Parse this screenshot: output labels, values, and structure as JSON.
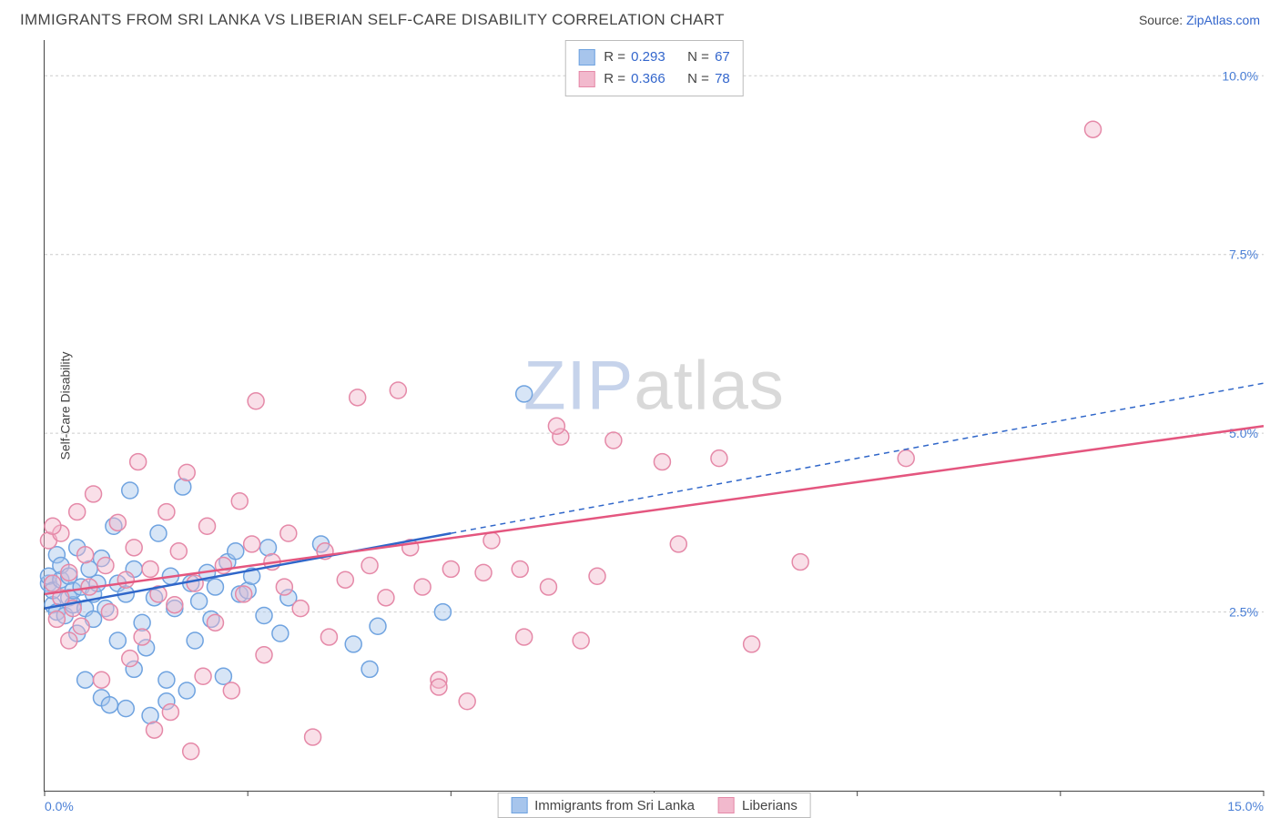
{
  "header": {
    "title": "IMMIGRANTS FROM SRI LANKA VS LIBERIAN SELF-CARE DISABILITY CORRELATION CHART",
    "source_prefix": "Source: ",
    "source_link": "ZipAtlas.com"
  },
  "chart": {
    "type": "scatter",
    "ylabel": "Self-Care Disability",
    "watermark_a": "ZIP",
    "watermark_b": "atlas",
    "background_color": "#ffffff",
    "grid_color": "#cccccc",
    "axis_color": "#444444",
    "tick_label_color": "#4a7fd6",
    "xlim": [
      0,
      15
    ],
    "ylim": [
      0,
      10.5
    ],
    "x_ticks": [
      0,
      2.5,
      5,
      7.5,
      10,
      12.5,
      15
    ],
    "x_tick_labels": [
      "0.0%",
      "",
      "",
      "",
      "",
      "",
      "15.0%"
    ],
    "y_ticks": [
      2.5,
      5.0,
      7.5,
      10.0
    ],
    "y_tick_labels": [
      "2.5%",
      "5.0%",
      "7.5%",
      "10.0%"
    ],
    "marker_radius": 9,
    "marker_fill_opacity": 0.45,
    "series": [
      {
        "id": "sri_lanka",
        "label": "Immigrants from Sri Lanka",
        "color_stroke": "#6fa3e0",
        "color_fill": "#a7c5ec",
        "trend_color": "#2f66c9",
        "r": "0.293",
        "n": "67",
        "trend": {
          "x1": 0,
          "y1": 2.55,
          "x2_solid": 5.0,
          "y2_solid": 3.6,
          "x2_dash": 15.0,
          "y2_dash": 5.7
        },
        "points": [
          [
            0.05,
            2.9
          ],
          [
            0.05,
            3.0
          ],
          [
            0.1,
            2.6
          ],
          [
            0.1,
            2.8
          ],
          [
            0.15,
            3.3
          ],
          [
            0.15,
            2.5
          ],
          [
            0.2,
            2.95
          ],
          [
            0.2,
            3.15
          ],
          [
            0.25,
            2.45
          ],
          [
            0.3,
            2.7
          ],
          [
            0.3,
            3.0
          ],
          [
            0.35,
            2.6
          ],
          [
            0.35,
            2.8
          ],
          [
            0.4,
            2.2
          ],
          [
            0.4,
            3.4
          ],
          [
            0.45,
            2.85
          ],
          [
            0.5,
            2.55
          ],
          [
            0.5,
            1.55
          ],
          [
            0.55,
            3.1
          ],
          [
            0.6,
            2.4
          ],
          [
            0.6,
            2.75
          ],
          [
            0.65,
            2.9
          ],
          [
            0.7,
            1.3
          ],
          [
            0.7,
            3.25
          ],
          [
            0.75,
            2.55
          ],
          [
            0.8,
            1.2
          ],
          [
            0.85,
            3.7
          ],
          [
            0.9,
            2.1
          ],
          [
            0.9,
            2.9
          ],
          [
            1.0,
            1.15
          ],
          [
            1.0,
            2.75
          ],
          [
            1.05,
            4.2
          ],
          [
            1.1,
            1.7
          ],
          [
            1.1,
            3.1
          ],
          [
            1.2,
            2.35
          ],
          [
            1.25,
            2.0
          ],
          [
            1.3,
            1.05
          ],
          [
            1.35,
            2.7
          ],
          [
            1.4,
            3.6
          ],
          [
            1.5,
            1.55
          ],
          [
            1.5,
            1.25
          ],
          [
            1.55,
            3.0
          ],
          [
            1.6,
            2.55
          ],
          [
            1.7,
            4.25
          ],
          [
            1.75,
            1.4
          ],
          [
            1.8,
            2.9
          ],
          [
            1.85,
            2.1
          ],
          [
            1.9,
            2.65
          ],
          [
            2.0,
            3.05
          ],
          [
            2.05,
            2.4
          ],
          [
            2.1,
            2.85
          ],
          [
            2.2,
            1.6
          ],
          [
            2.25,
            3.2
          ],
          [
            2.35,
            3.35
          ],
          [
            2.4,
            2.75
          ],
          [
            2.5,
            2.8
          ],
          [
            2.55,
            3.0
          ],
          [
            2.7,
            2.45
          ],
          [
            2.75,
            3.4
          ],
          [
            2.9,
            2.2
          ],
          [
            3.0,
            2.7
          ],
          [
            3.4,
            3.45
          ],
          [
            3.8,
            2.05
          ],
          [
            4.0,
            1.7
          ],
          [
            4.1,
            2.3
          ],
          [
            4.9,
            2.5
          ],
          [
            5.9,
            5.55
          ]
        ]
      },
      {
        "id": "liberians",
        "label": "Liberians",
        "color_stroke": "#e589a8",
        "color_fill": "#f2b9cd",
        "trend_color": "#e4567f",
        "r": "0.366",
        "n": "78",
        "trend": {
          "x1": 0,
          "y1": 2.75,
          "x2_solid": 15.0,
          "y2_solid": 5.1,
          "x2_dash": 15.0,
          "y2_dash": 5.1
        },
        "points": [
          [
            0.05,
            3.5
          ],
          [
            0.1,
            2.9
          ],
          [
            0.15,
            2.4
          ],
          [
            0.2,
            3.6
          ],
          [
            0.2,
            2.7
          ],
          [
            0.3,
            3.05
          ],
          [
            0.35,
            2.55
          ],
          [
            0.4,
            3.9
          ],
          [
            0.45,
            2.3
          ],
          [
            0.5,
            3.3
          ],
          [
            0.55,
            2.85
          ],
          [
            0.6,
            4.15
          ],
          [
            0.7,
            1.55
          ],
          [
            0.75,
            3.15
          ],
          [
            0.8,
            2.5
          ],
          [
            0.9,
            3.75
          ],
          [
            1.0,
            2.95
          ],
          [
            1.05,
            1.85
          ],
          [
            1.1,
            3.4
          ],
          [
            1.15,
            4.6
          ],
          [
            1.2,
            2.15
          ],
          [
            1.3,
            3.1
          ],
          [
            1.35,
            0.85
          ],
          [
            1.4,
            2.75
          ],
          [
            1.5,
            3.9
          ],
          [
            1.55,
            1.1
          ],
          [
            1.6,
            2.6
          ],
          [
            1.65,
            3.35
          ],
          [
            1.75,
            4.45
          ],
          [
            1.8,
            0.55
          ],
          [
            1.85,
            2.9
          ],
          [
            1.95,
            1.6
          ],
          [
            2.0,
            3.7
          ],
          [
            2.1,
            2.35
          ],
          [
            2.2,
            3.15
          ],
          [
            2.3,
            1.4
          ],
          [
            2.4,
            4.05
          ],
          [
            2.45,
            2.75
          ],
          [
            2.55,
            3.45
          ],
          [
            2.6,
            5.45
          ],
          [
            2.7,
            1.9
          ],
          [
            2.8,
            3.2
          ],
          [
            2.95,
            2.85
          ],
          [
            3.0,
            3.6
          ],
          [
            3.15,
            2.55
          ],
          [
            3.3,
            0.75
          ],
          [
            3.45,
            3.35
          ],
          [
            3.5,
            2.15
          ],
          [
            3.7,
            2.95
          ],
          [
            3.85,
            5.5
          ],
          [
            4.0,
            3.15
          ],
          [
            4.2,
            2.7
          ],
          [
            4.35,
            5.6
          ],
          [
            4.5,
            3.4
          ],
          [
            4.65,
            2.85
          ],
          [
            4.85,
            1.55
          ],
          [
            4.85,
            1.45
          ],
          [
            5.0,
            3.1
          ],
          [
            5.2,
            1.25
          ],
          [
            5.4,
            3.05
          ],
          [
            5.5,
            3.5
          ],
          [
            5.85,
            3.1
          ],
          [
            5.9,
            2.15
          ],
          [
            6.2,
            2.85
          ],
          [
            6.35,
            4.95
          ],
          [
            6.6,
            2.1
          ],
          [
            6.8,
            3.0
          ],
          [
            7.0,
            4.9
          ],
          [
            7.6,
            4.6
          ],
          [
            7.8,
            3.45
          ],
          [
            8.3,
            4.65
          ],
          [
            8.7,
            2.05
          ],
          [
            9.3,
            3.2
          ],
          [
            10.6,
            4.65
          ],
          [
            12.9,
            9.25
          ],
          [
            6.3,
            5.1
          ],
          [
            0.1,
            3.7
          ],
          [
            0.3,
            2.1
          ]
        ]
      }
    ]
  }
}
